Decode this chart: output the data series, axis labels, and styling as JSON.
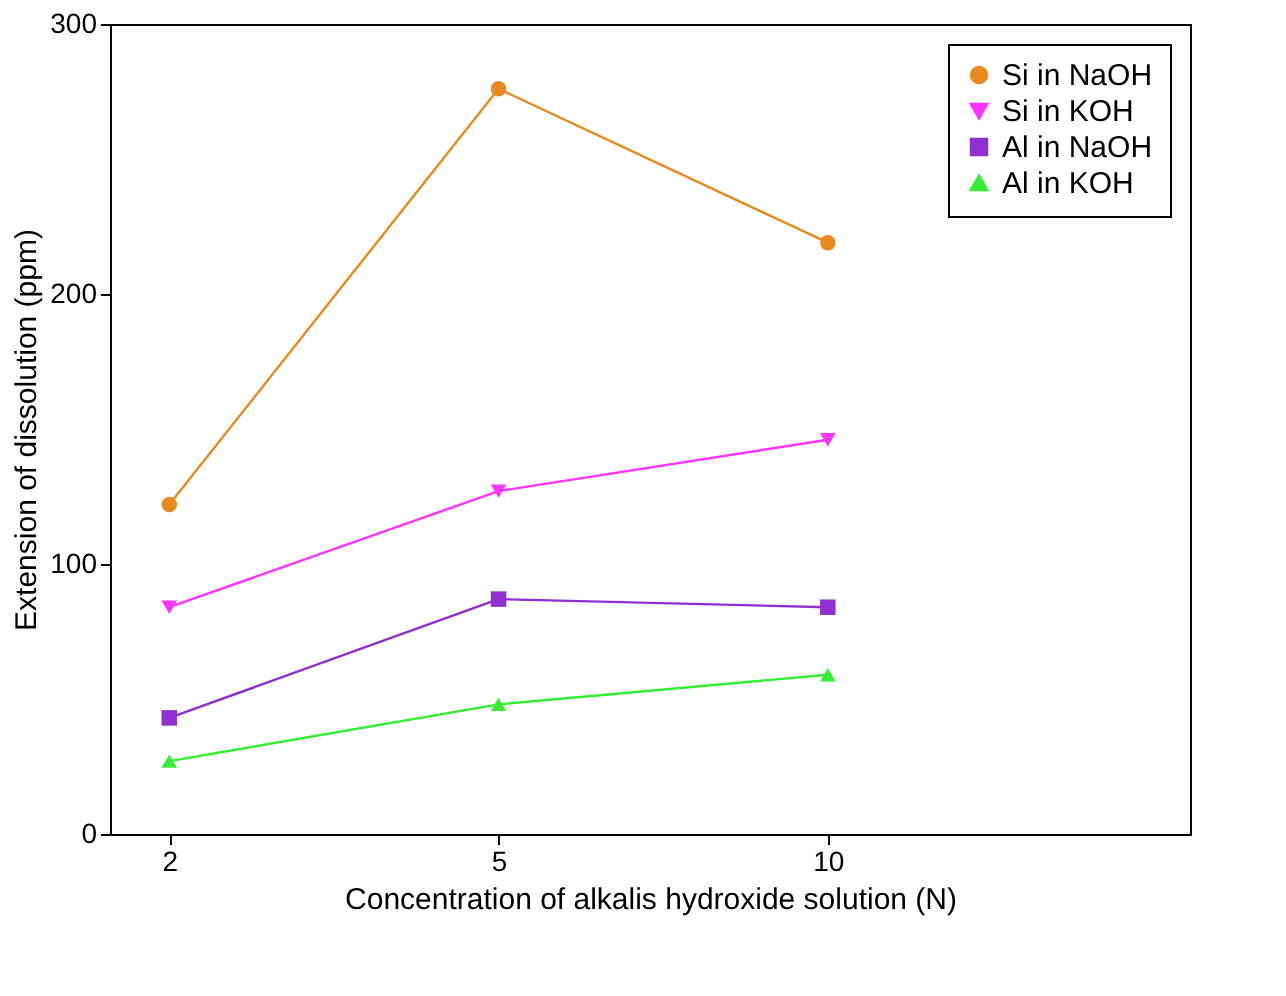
{
  "chart_data": {
    "type": "line",
    "xlabel": "Concentration of alkalis hydroxide solution (N)",
    "ylabel": "Extension of dissolution (ppm)",
    "categories": [
      "2",
      "5",
      "10"
    ],
    "ylim": [
      0,
      300
    ],
    "yticks": [
      0,
      100,
      200,
      300
    ],
    "grid": false,
    "legend": "top right",
    "series": [
      {
        "name": "Si in NaOH",
        "color": "#e8891f",
        "marker": "circle",
        "values": [
          122,
          276,
          219
        ]
      },
      {
        "name": "Si in KOH",
        "color": "#ff33ff",
        "marker": "triangle-down",
        "values": [
          84,
          127,
          146
        ]
      },
      {
        "name": "Al in NaOH",
        "color": "#8f2fd0",
        "marker": "square",
        "values": [
          43,
          87,
          84
        ]
      },
      {
        "name": "Al in KOH",
        "color": "#33ee33",
        "marker": "triangle",
        "values": [
          27,
          48,
          59
        ]
      }
    ]
  }
}
